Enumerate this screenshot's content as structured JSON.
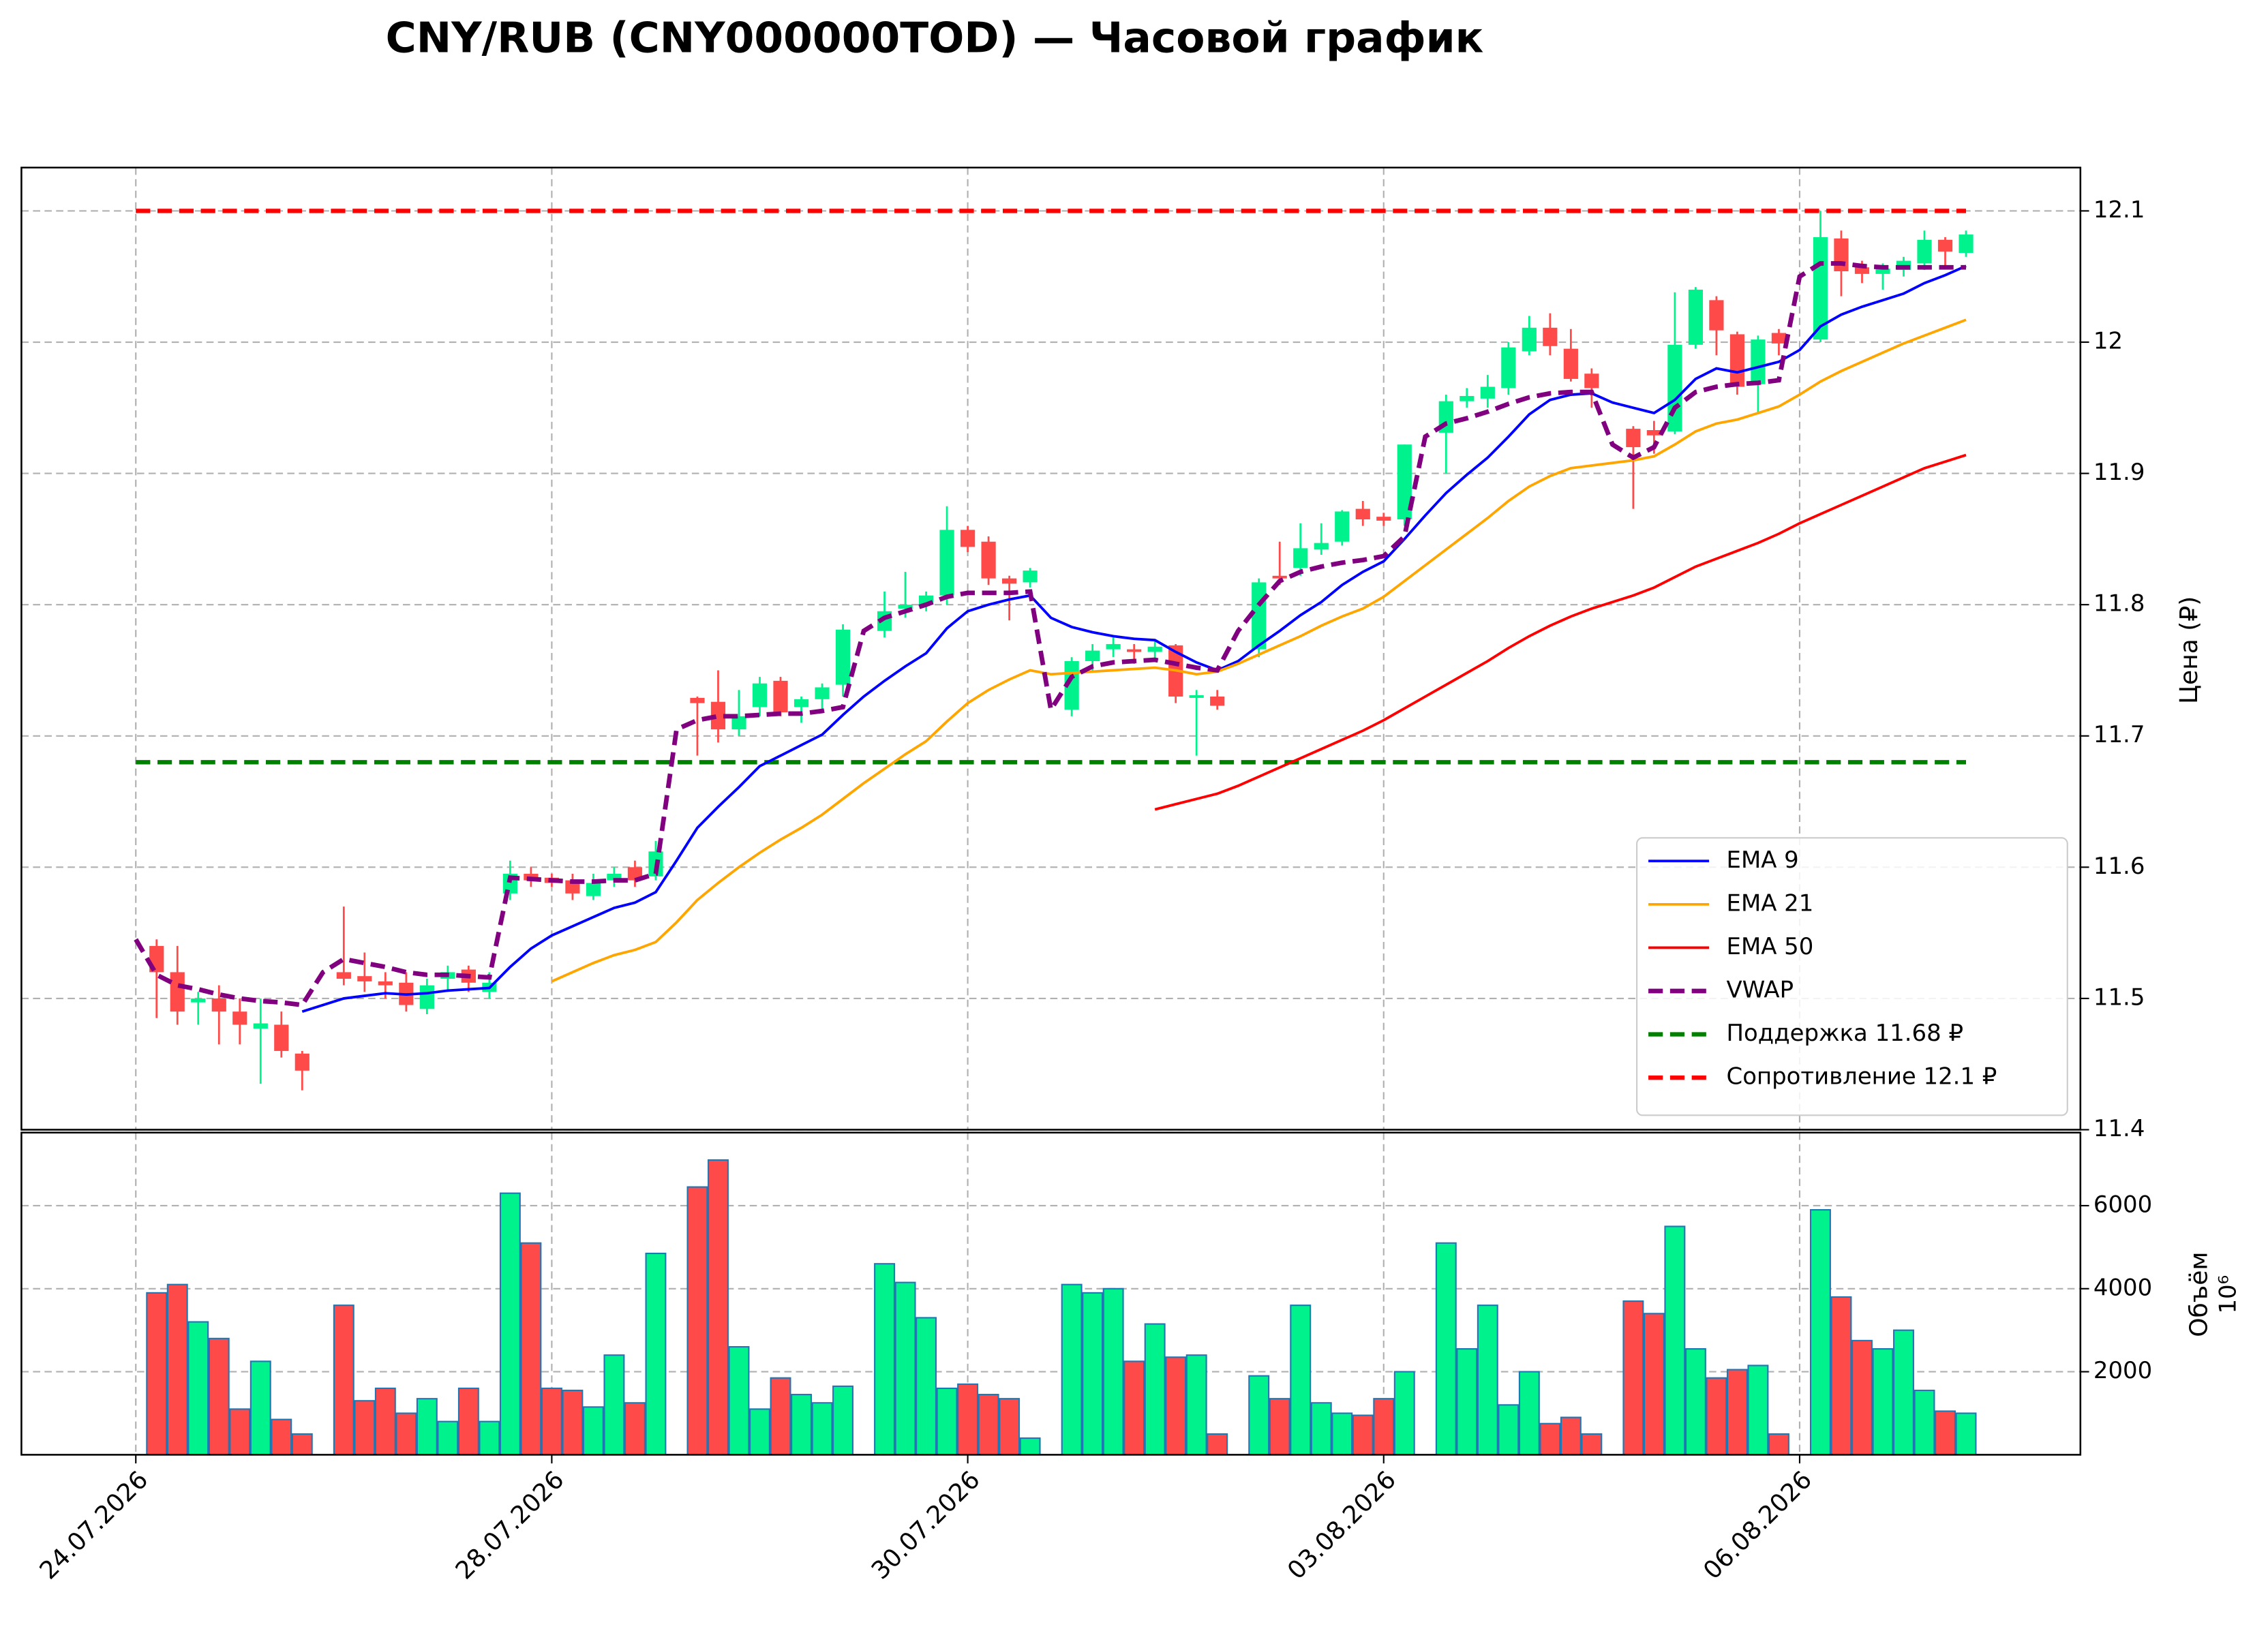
{
  "chart_data": [
    {
      "type": "candlestick",
      "title": "CNY/RUB (CNY000000TOD) — Часовой график",
      "y_label": "Цена (₽)",
      "up_color": "#00f28c",
      "down_color": "#ff4a4a",
      "open": [
        null,
        11.54,
        11.52,
        11.497,
        11.5,
        11.49,
        11.477,
        11.48,
        11.458,
        null,
        11.52,
        11.517,
        11.513,
        11.512,
        11.492,
        11.515,
        11.522,
        11.505,
        11.58,
        11.595,
        11.592,
        11.59,
        11.578,
        11.59,
        11.6,
        11.593,
        null,
        11.729,
        11.726,
        11.705,
        11.722,
        11.742,
        11.722,
        11.728,
        11.739,
        null,
        11.78,
        11.797,
        11.8,
        11.807,
        11.857,
        11.848,
        11.82,
        11.817,
        null,
        11.72,
        11.757,
        11.766,
        11.766,
        11.764,
        11.769,
        11.729,
        11.73,
        null,
        11.766,
        11.822,
        11.828,
        11.842,
        11.848,
        11.873,
        11.867,
        11.865,
        null,
        11.931,
        11.955,
        11.957,
        11.965,
        11.993,
        12.011,
        11.995,
        11.976,
        null,
        11.934,
        11.933,
        11.932,
        11.998,
        12.032,
        12.006,
        11.968,
        12.007,
        null,
        12.002,
        12.079,
        12.057,
        12.052,
        12.055,
        12.06,
        12.078,
        12.068
      ],
      "high": [
        null,
        11.545,
        11.54,
        11.505,
        11.51,
        11.5,
        11.5,
        11.49,
        11.46,
        null,
        11.57,
        11.535,
        11.52,
        11.52,
        11.515,
        11.525,
        11.525,
        11.52,
        11.605,
        11.6,
        11.595,
        11.595,
        11.595,
        11.6,
        11.605,
        11.62,
        null,
        11.73,
        11.75,
        11.735,
        11.745,
        11.745,
        11.73,
        11.74,
        11.785,
        null,
        11.81,
        11.825,
        11.81,
        11.875,
        11.86,
        11.852,
        11.822,
        11.828,
        null,
        11.76,
        11.77,
        11.775,
        11.77,
        11.772,
        11.77,
        11.735,
        11.735,
        null,
        11.82,
        11.848,
        11.862,
        11.862,
        11.872,
        11.879,
        11.87,
        11.922,
        null,
        11.96,
        11.965,
        11.975,
        12.0,
        12.02,
        12.022,
        12.01,
        11.98,
        null,
        11.936,
        11.94,
        12.038,
        12.042,
        12.035,
        12.008,
        12.005,
        12.01,
        null,
        12.1,
        12.085,
        12.062,
        12.06,
        12.065,
        12.085,
        12.08,
        12.085
      ],
      "low": [
        null,
        11.485,
        11.48,
        11.48,
        11.465,
        11.465,
        11.435,
        11.455,
        11.43,
        null,
        11.51,
        11.505,
        11.5,
        11.49,
        11.488,
        11.505,
        11.505,
        11.5,
        11.575,
        11.585,
        11.585,
        11.575,
        11.575,
        11.585,
        11.585,
        11.59,
        null,
        11.685,
        11.695,
        11.7,
        11.715,
        11.715,
        11.71,
        11.72,
        11.73,
        null,
        11.775,
        11.79,
        11.795,
        11.8,
        11.84,
        11.815,
        11.788,
        11.813,
        null,
        11.715,
        11.75,
        11.76,
        11.755,
        11.757,
        11.725,
        11.685,
        11.72,
        null,
        11.76,
        11.815,
        11.822,
        11.838,
        11.845,
        11.86,
        11.86,
        11.86,
        null,
        11.9,
        11.95,
        11.95,
        11.96,
        11.99,
        11.99,
        11.97,
        11.95,
        null,
        11.873,
        11.915,
        11.93,
        11.995,
        11.99,
        11.96,
        11.945,
        11.99,
        null,
        12.0,
        12.035,
        12.045,
        12.04,
        12.05,
        12.055,
        12.058,
        12.065
      ],
      "close": [
        null,
        11.52,
        11.49,
        11.5,
        11.49,
        11.48,
        11.481,
        11.46,
        11.445,
        null,
        11.515,
        11.513,
        11.51,
        11.495,
        11.51,
        11.52,
        11.512,
        11.512,
        11.595,
        11.59,
        11.588,
        11.58,
        11.588,
        11.595,
        11.59,
        11.612,
        null,
        11.725,
        11.705,
        11.715,
        11.74,
        11.718,
        11.728,
        11.737,
        11.781,
        null,
        11.795,
        11.8,
        11.807,
        11.857,
        11.844,
        11.82,
        11.816,
        11.826,
        null,
        11.757,
        11.765,
        11.77,
        11.764,
        11.768,
        11.73,
        11.731,
        11.723,
        null,
        11.817,
        11.82,
        11.843,
        11.847,
        11.871,
        11.865,
        11.864,
        11.922,
        null,
        11.955,
        11.959,
        11.966,
        11.996,
        12.011,
        11.997,
        11.972,
        11.965,
        null,
        11.92,
        11.929,
        11.998,
        12.04,
        12.009,
        11.966,
        12.002,
        11.999,
        null,
        12.08,
        12.054,
        12.052,
        12.056,
        12.062,
        12.078,
        12.069,
        12.082
      ],
      "lines": [
        {
          "name": "EMA 9",
          "color": "#0000ff",
          "dashed": false,
          "values": [
            null,
            null,
            null,
            null,
            null,
            null,
            null,
            null,
            11.49,
            11.495,
            11.5,
            11.502,
            11.504,
            11.503,
            11.504,
            11.506,
            11.507,
            11.508,
            11.524,
            11.538,
            11.548,
            11.555,
            11.562,
            11.569,
            11.573,
            11.581,
            11.605,
            11.63,
            11.646,
            11.661,
            11.677,
            11.685,
            11.693,
            11.701,
            11.716,
            11.73,
            11.742,
            11.753,
            11.763,
            11.782,
            11.795,
            11.8,
            11.804,
            11.807,
            11.79,
            11.783,
            11.779,
            11.776,
            11.774,
            11.773,
            11.764,
            11.756,
            11.75,
            11.757,
            11.769,
            11.78,
            11.792,
            11.802,
            11.815,
            11.825,
            11.833,
            11.85,
            11.868,
            11.885,
            11.899,
            11.912,
            11.928,
            11.945,
            11.956,
            11.96,
            11.961,
            11.954,
            11.95,
            11.946,
            11.956,
            11.972,
            11.98,
            11.977,
            11.981,
            11.985,
            11.994,
            12.012,
            12.021,
            12.027,
            12.032,
            12.037,
            12.045,
            12.051,
            12.058
          ]
        },
        {
          "name": "EMA 21",
          "color": "#ffa500",
          "dashed": false,
          "values": [
            null,
            null,
            null,
            null,
            null,
            null,
            null,
            null,
            null,
            null,
            null,
            null,
            null,
            null,
            null,
            null,
            null,
            null,
            null,
            null,
            11.513,
            11.52,
            11.527,
            11.533,
            11.537,
            11.543,
            11.558,
            11.575,
            11.588,
            11.6,
            11.611,
            11.621,
            11.63,
            11.64,
            11.652,
            11.664,
            11.675,
            11.686,
            11.696,
            11.711,
            11.725,
            11.735,
            11.743,
            11.75,
            11.747,
            11.748,
            11.749,
            11.75,
            11.751,
            11.752,
            11.75,
            11.747,
            11.749,
            11.755,
            11.762,
            11.769,
            11.776,
            11.784,
            11.791,
            11.797,
            11.806,
            11.818,
            11.83,
            11.842,
            11.854,
            11.866,
            11.879,
            11.89,
            11.898,
            11.904,
            11.906,
            11.908,
            11.91,
            11.913,
            11.922,
            11.932,
            11.938,
            11.941,
            11.946,
            11.951,
            11.96,
            11.97,
            11.978,
            11.985,
            11.992,
            11.999,
            12.005,
            12.011,
            12.017
          ]
        },
        {
          "name": "EMA 50",
          "color": "#ff0000",
          "dashed": false,
          "values": [
            null,
            null,
            null,
            null,
            null,
            null,
            null,
            null,
            null,
            null,
            null,
            null,
            null,
            null,
            null,
            null,
            null,
            null,
            null,
            null,
            null,
            null,
            null,
            null,
            null,
            null,
            null,
            null,
            null,
            null,
            null,
            null,
            null,
            null,
            null,
            null,
            null,
            null,
            null,
            null,
            null,
            null,
            null,
            null,
            null,
            null,
            null,
            null,
            null,
            11.644,
            11.648,
            11.652,
            11.656,
            11.662,
            11.669,
            11.676,
            11.683,
            11.69,
            11.697,
            11.704,
            11.712,
            11.721,
            11.73,
            11.739,
            11.748,
            11.757,
            11.767,
            11.776,
            11.784,
            11.791,
            11.797,
            11.802,
            11.807,
            11.813,
            11.821,
            11.829,
            11.835,
            11.841,
            11.847,
            11.854,
            11.862,
            11.869,
            11.876,
            11.883,
            11.89,
            11.897,
            11.904,
            11.909,
            11.914
          ]
        },
        {
          "name": "VWAP",
          "color": "#800080",
          "dashed": true,
          "values": [
            11.545,
            11.518,
            11.51,
            11.507,
            11.503,
            11.5,
            11.498,
            11.497,
            11.495,
            11.52,
            11.53,
            11.527,
            11.524,
            11.52,
            11.518,
            11.518,
            11.517,
            11.516,
            11.592,
            11.591,
            11.59,
            11.589,
            11.589,
            11.59,
            11.59,
            11.595,
            11.705,
            11.712,
            11.715,
            11.715,
            11.716,
            11.717,
            11.717,
            11.719,
            11.722,
            11.78,
            11.79,
            11.795,
            11.8,
            11.806,
            11.809,
            11.809,
            11.809,
            11.81,
            11.72,
            11.745,
            11.753,
            11.756,
            11.757,
            11.758,
            11.755,
            11.752,
            11.75,
            11.78,
            11.8,
            11.818,
            11.825,
            11.829,
            11.832,
            11.834,
            11.837,
            11.852,
            11.928,
            11.938,
            11.942,
            11.947,
            11.953,
            11.958,
            11.961,
            11.962,
            11.962,
            11.922,
            11.912,
            11.92,
            11.95,
            11.962,
            11.966,
            11.968,
            11.969,
            11.971,
            12.05,
            12.06,
            12.06,
            12.058,
            12.057,
            12.057,
            12.057,
            12.057,
            12.057
          ]
        }
      ],
      "hlines": [
        {
          "name": "Поддержка 11.68 ₽",
          "value": 11.68,
          "color": "#008000"
        },
        {
          "name": "Сопротивление 12.1 ₽",
          "value": 12.1,
          "color": "#ff0000"
        }
      ],
      "ylim": [
        11.4,
        12.133
      ],
      "yticks": [
        11.4,
        11.5,
        11.6,
        11.7,
        11.8,
        11.9,
        12.0,
        12.1
      ],
      "grid": true,
      "legend": "lower right"
    },
    {
      "type": "bar",
      "y_label": "Объём",
      "y_offset_label": "10⁶",
      "edge_color": "#1f77b4",
      "values": [
        null,
        3900,
        4100,
        3200,
        2800,
        1100,
        2250,
        850,
        500,
        null,
        3600,
        1300,
        1600,
        1000,
        1350,
        800,
        1600,
        800,
        6300,
        5100,
        1600,
        1550,
        1150,
        2400,
        1250,
        4850,
        null,
        6450,
        7100,
        2600,
        1100,
        1850,
        1450,
        1250,
        1650,
        null,
        4600,
        4150,
        3300,
        1600,
        1700,
        1450,
        1350,
        400,
        null,
        4100,
        3900,
        4000,
        2250,
        3150,
        2350,
        2400,
        500,
        null,
        1900,
        1350,
        3600,
        1250,
        1000,
        950,
        1350,
        2000,
        null,
        5100,
        2550,
        3600,
        1200,
        2000,
        750,
        900,
        500,
        null,
        3700,
        3400,
        5500,
        2550,
        1850,
        2050,
        2150,
        500,
        null,
        5900,
        3800,
        2750,
        2550,
        3000,
        1550,
        1050,
        1000
      ],
      "ylim": [
        0,
        7760
      ],
      "yticks": [
        2000,
        4000,
        6000
      ],
      "grid": true,
      "xlim": [
        -5.5,
        93.5
      ],
      "xticks": [
        {
          "value": 0,
          "label": "24.07.2026"
        },
        {
          "value": 20,
          "label": "28.07.2026"
        },
        {
          "value": 40,
          "label": "30.07.2026"
        },
        {
          "value": 60,
          "label": "03.08.2026"
        },
        {
          "value": 80,
          "label": "06.08.2026"
        }
      ]
    }
  ]
}
